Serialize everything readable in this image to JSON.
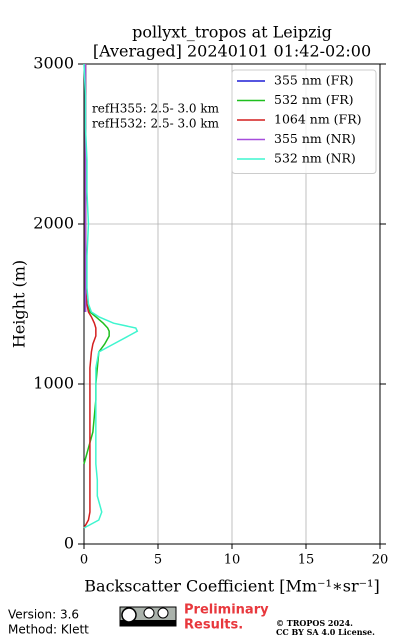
{
  "chart_data": {
    "type": "line",
    "title": "pollyxt_tropos at Leipzig",
    "subtitle": "[Averaged] 20240101 01:42-02:00",
    "x_label": "Backscatter Coefficient [Mm⁻¹∗sr⁻¹]",
    "y_label": "Height (m)",
    "annotations": [
      "refH355:  2.5- 3.0 km",
      "refH532:  2.5- 3.0 km"
    ],
    "y": [
      100,
      150,
      200,
      300,
      400,
      500,
      600,
      700,
      800,
      900,
      1000,
      1100,
      1200,
      1250,
      1300,
      1330,
      1350,
      1380,
      1420,
      1450,
      1500,
      1600,
      1800,
      2000,
      2200,
      2400,
      2600,
      2800,
      3000
    ],
    "series": [
      {
        "name": "355 nm (FR)",
        "color": "#1f1fd6",
        "values": [
          null,
          null,
          null,
          null,
          null,
          null,
          null,
          null,
          null,
          null,
          null,
          null,
          null,
          null,
          null,
          null,
          null,
          null,
          null,
          0.1,
          0.1,
          0.1,
          0.1,
          0.1,
          0.1,
          0.1,
          0.1,
          0.1,
          0.1
        ]
      },
      {
        "name": "532 nm (FR)",
        "color": "#1fbf1f",
        "values": [
          null,
          null,
          null,
          null,
          null,
          0.0,
          0.3,
          0.6,
          0.7,
          0.8,
          0.8,
          0.9,
          1.0,
          1.4,
          1.7,
          1.7,
          1.6,
          1.3,
          0.8,
          0.4,
          0.2,
          0.1,
          0.1,
          0.1,
          0.1,
          0.1,
          0.1,
          0.1,
          0.1
        ]
      },
      {
        "name": "1064 nm (FR)",
        "color": "#d41f1f",
        "values": [
          0.0,
          0.3,
          0.4,
          0.4,
          0.4,
          0.4,
          0.4,
          0.4,
          0.4,
          0.4,
          0.4,
          0.4,
          0.5,
          0.6,
          0.8,
          0.8,
          0.8,
          0.7,
          0.5,
          0.3,
          0.2,
          0.1,
          0.1,
          0.1,
          0.1,
          0.1,
          0.1,
          0.1,
          0.1
        ]
      },
      {
        "name": "355 nm (NR)",
        "color": "#a64ddc",
        "values": [
          null,
          null,
          null,
          null,
          null,
          null,
          null,
          null,
          null,
          null,
          null,
          null,
          null,
          null,
          null,
          null,
          null,
          null,
          null,
          0.1,
          0.1,
          0.1,
          0.1,
          0.1,
          0.1,
          0.1,
          0.1,
          0.1,
          0.1
        ]
      },
      {
        "name": "532 nm (NR)",
        "color": "#3ff5cf",
        "values": [
          0.0,
          1.0,
          1.2,
          0.9,
          0.9,
          0.8,
          0.8,
          0.8,
          0.8,
          0.8,
          0.8,
          0.8,
          1.0,
          2.0,
          3.0,
          3.6,
          3.5,
          2.0,
          1.0,
          0.5,
          0.3,
          0.2,
          0.2,
          0.3,
          0.2,
          0.2,
          0.1,
          0.1,
          0.0
        ]
      }
    ],
    "xlim": [
      0,
      20
    ],
    "xticks": [
      0,
      5,
      10,
      15,
      20
    ],
    "ylim": [
      0,
      3000
    ],
    "yticks": [
      0,
      1000,
      2000,
      3000
    ],
    "grid": true,
    "legend": "upper-right"
  },
  "footer": {
    "version": "Version: 3.6",
    "method": "Method: Klett",
    "preliminary": [
      "Preliminary",
      "Results."
    ],
    "copyright": [
      "© TROPOS 2024.",
      "CC BY SA 4.0 License."
    ]
  }
}
